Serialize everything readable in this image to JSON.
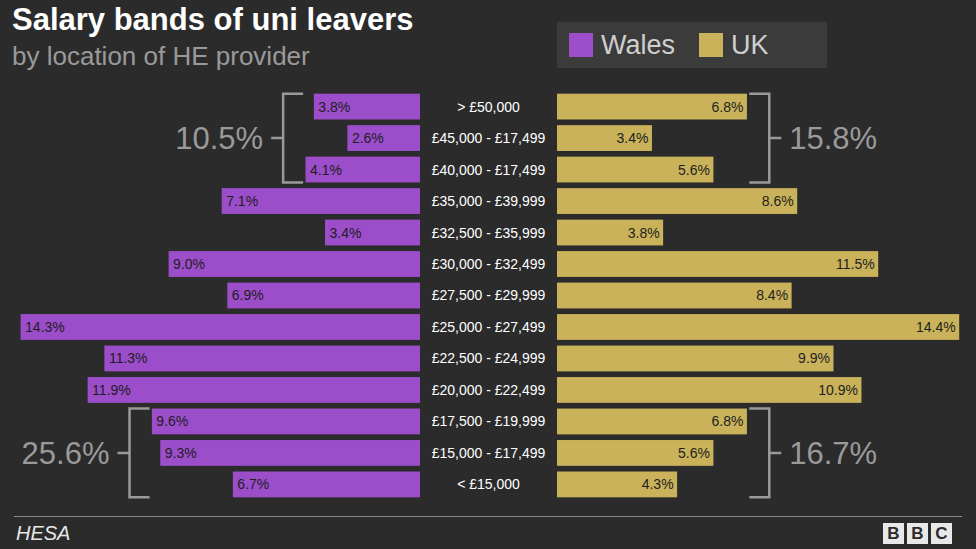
{
  "chart_data": {
    "type": "bar",
    "orientation": "horizontal",
    "title": "Salary bands of uni leavers",
    "subtitle": "by location of HE provider",
    "categories": [
      "> £50,000",
      "£45,000 - £17,499",
      "£40,000 - £17,499",
      "£35,000 - £39,999",
      "£32,500 - £35,999",
      "£30,000 - £32,499",
      "£27,500 - £29,999",
      "£25,000 - £27,499",
      "£22,500 - £24,999",
      "£20,000 - £22,499",
      "£17,500 - £19,999",
      "£15,000 - £17,499",
      "< £15,000"
    ],
    "series": [
      {
        "name": "Wales",
        "color": "#9b4dca",
        "values": [
          3.8,
          2.6,
          4.1,
          7.1,
          3.4,
          9.0,
          6.9,
          14.3,
          11.3,
          11.9,
          9.6,
          9.3,
          6.7
        ],
        "value_labels": [
          "3.8%",
          "2.6%",
          "4.1%",
          "7.1%",
          "3.4%",
          "9.0%",
          "6.9%",
          "14.3%",
          "11.3%",
          "11.9%",
          "9.6%",
          "9.3%",
          "6.7%"
        ]
      },
      {
        "name": "UK",
        "color": "#c9b25a",
        "values": [
          6.8,
          3.4,
          5.6,
          8.6,
          3.8,
          11.5,
          8.4,
          14.4,
          9.9,
          10.9,
          6.8,
          5.6,
          4.3
        ],
        "value_labels": [
          "6.8%",
          "3.4%",
          "5.6%",
          "8.6%",
          "3.8%",
          "11.5%",
          "8.4%",
          "14.4%",
          "9.9%",
          "10.9%",
          "6.8%",
          "5.6%",
          "4.3%"
        ]
      }
    ],
    "xlim": [
      0,
      14.5
    ],
    "data_labels": true,
    "tick_labels": "y",
    "legend": "top-right",
    "annotations": [
      {
        "text": "10.5%",
        "series": "Wales",
        "from": "> £50,000",
        "to": "£40,000 - £17,499"
      },
      {
        "text": "15.8%",
        "series": "UK",
        "from": "> £50,000",
        "to": "£40,000 - £17,499"
      },
      {
        "text": "25.6%",
        "series": "Wales",
        "from": "£17,500 - £19,999",
        "to": "< £15,000"
      },
      {
        "text": "16.7%",
        "series": "UK",
        "from": "£17,500 - £19,999",
        "to": "< £15,000"
      }
    ],
    "source": "HESA",
    "logo": "BBC"
  }
}
